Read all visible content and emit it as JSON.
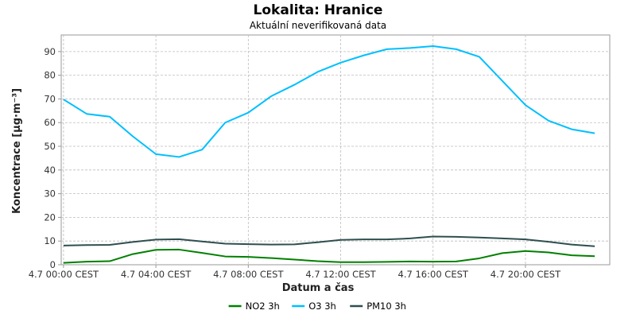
{
  "chart_data": {
    "type": "line",
    "title": "Lokalita: Hranice",
    "subtitle": "Aktuální neverifikovaná data",
    "xlabel": "Datum a čas",
    "ylabel": "Koncentrace [µg·m⁻³]",
    "ylim": [
      0,
      97
    ],
    "xlim": [
      -0.1,
      23.65
    ],
    "yticks": [
      0,
      10,
      20,
      30,
      40,
      50,
      60,
      70,
      80,
      90
    ],
    "xticks": [
      {
        "x": 0,
        "label": "4.7 00:00 CEST"
      },
      {
        "x": 4,
        "label": "4.7 04:00 CEST"
      },
      {
        "x": 8,
        "label": "4.7 08:00 CEST"
      },
      {
        "x": 12,
        "label": "4.7 12:00 CEST"
      },
      {
        "x": 16,
        "label": "4.7 16:00 CEST"
      },
      {
        "x": 20,
        "label": "4.7 20:00 CEST"
      }
    ],
    "grid": true,
    "legend_position": "bottom",
    "x": [
      0,
      1,
      2,
      3,
      4,
      5,
      6,
      7,
      8,
      9,
      10,
      11,
      12,
      13,
      14,
      15,
      16,
      17,
      18,
      19,
      20,
      21,
      22,
      23
    ],
    "series": [
      {
        "name": "NO2 3h",
        "color": "#008000",
        "values": [
          0.8,
          1.3,
          1.5,
          4.5,
          6.3,
          6.4,
          5.0,
          3.5,
          3.3,
          2.8,
          2.2,
          1.5,
          1.1,
          1.1,
          1.2,
          1.4,
          1.3,
          1.4,
          2.7,
          4.9,
          5.8,
          5.2,
          4.0,
          3.6
        ]
      },
      {
        "name": "O3 3h",
        "color": "#00bfff",
        "values": [
          69.8,
          63.7,
          62.5,
          54.2,
          46.7,
          45.5,
          48.6,
          60.0,
          64.2,
          71.2,
          76.0,
          81.4,
          85.3,
          88.4,
          91.0,
          91.5,
          92.3,
          91.0,
          87.8,
          77.6,
          67.4,
          60.8,
          57.2,
          55.5
        ]
      },
      {
        "name": "PM10 3h",
        "color": "#2f4f4f",
        "values": [
          8.1,
          8.3,
          8.4,
          9.6,
          10.6,
          10.8,
          9.8,
          8.9,
          8.7,
          8.5,
          8.6,
          9.5,
          10.5,
          10.7,
          10.7,
          11.1,
          11.9,
          11.8,
          11.5,
          11.1,
          10.7,
          9.7,
          8.5,
          7.8
        ]
      }
    ]
  }
}
